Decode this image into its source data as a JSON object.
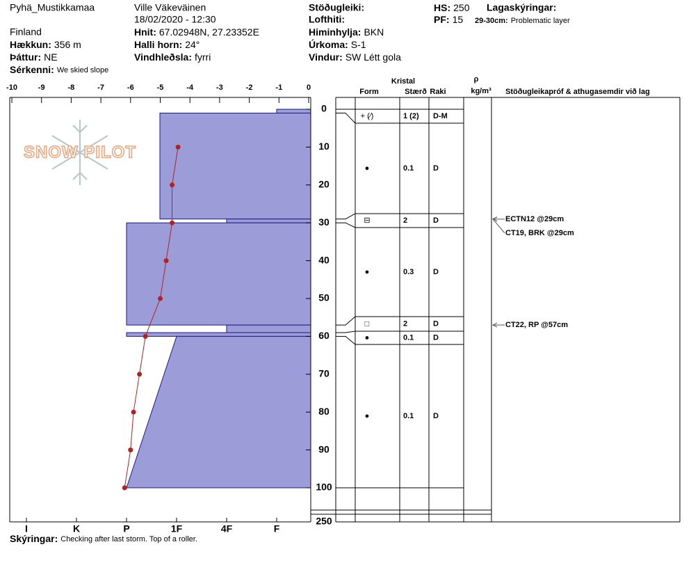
{
  "header": {
    "site": "Pyhä_Mustikkamaa",
    "country": "Finland",
    "elevation": {
      "label": "Hækkun:",
      "value": "356 m"
    },
    "aspect": {
      "label": "Þáttur:",
      "value": "NE"
    },
    "features": {
      "label": "Sérkenni:",
      "value": "We skied slope"
    },
    "observer": "Ville Väkeväinen",
    "datetime": "18/02/2020 - 12:30",
    "coords": {
      "label": "Hnit:",
      "value": "67.02948N, 27.23352E"
    },
    "slope": {
      "label": "Halli horn:",
      "value": "24°"
    },
    "wind_loading": {
      "label": "Vindhleðsla:",
      "value": "fyrri"
    },
    "stability_label": "Stöðugleiki:",
    "air_temp_label": "Lofthiti:",
    "sky": {
      "label": "Himinhylja:",
      "value": "BKN"
    },
    "precip": {
      "label": "Úrkoma:",
      "value": "S-1"
    },
    "wind": {
      "label": "Vindur:",
      "value": "SW Létt gola"
    },
    "hs": {
      "label": "HS:",
      "value": "250"
    },
    "pf": {
      "label": "PF:",
      "value": "15"
    },
    "layer_notes_label": "Lagaskýringar:",
    "layer_note": {
      "label": "29-30cm:",
      "value": "Problematic layer"
    }
  },
  "logo": "SNOW PILOT",
  "table_header": {
    "crystal": "Kristal",
    "form": "Form",
    "size": "Stærð",
    "moisture": "Raki",
    "density": "ρ",
    "density_unit": "kg/m³",
    "tests": "Stöðugleikapróf & athugasemdir við lag"
  },
  "profile": {
    "xlim": [
      -10,
      0
    ],
    "xticks": [
      -10,
      -9,
      -8,
      -7,
      -6,
      -5,
      -4,
      -3,
      -2,
      -1,
      0
    ],
    "ylim": [
      0,
      100
    ],
    "yticks": [
      0,
      10,
      20,
      30,
      40,
      50,
      60,
      70,
      80,
      90,
      100
    ],
    "total_depth": 250,
    "hardness_scale": [
      "I",
      "K",
      "P",
      "1F",
      "4F",
      "F"
    ],
    "temperatures": {
      "depths": [
        10,
        20,
        30,
        40,
        50,
        60,
        70,
        80,
        90,
        100
      ],
      "values": [
        -4.4,
        -4.6,
        -4.6,
        -4.8,
        -5.0,
        -5.5,
        -5.7,
        -5.9,
        -6.0,
        -6.2
      ]
    },
    "layers": [
      {
        "top": 0,
        "bottom": 1,
        "hardness": "F",
        "form": "+ (⁄)",
        "size": "1 (2)",
        "moisture": "D-M"
      },
      {
        "top": 1,
        "bottom": 29,
        "hardness": "1F+",
        "form": "●",
        "size": "0.1",
        "moisture": "D"
      },
      {
        "top": 29,
        "bottom": 30,
        "hardness": "4F",
        "form": "⊟",
        "size": "2",
        "moisture": "D"
      },
      {
        "top": 30,
        "bottom": 57,
        "hardness": "P",
        "form": "●",
        "size": "0.3",
        "moisture": "D"
      },
      {
        "top": 57,
        "bottom": 59,
        "hardness": "4F",
        "form": "□",
        "size": "2",
        "moisture": "D"
      },
      {
        "top": 59,
        "bottom": 60,
        "hardness": "P",
        "form": "●",
        "size": "0.1",
        "moisture": "D"
      },
      {
        "top": 60,
        "bottom": 100,
        "hardness": "1F",
        "hardness_bottom": "P",
        "form": "●",
        "size": "0.1",
        "moisture": "D"
      }
    ],
    "tests": [
      {
        "text": "ECTN12 @29cm",
        "depth": 29
      },
      {
        "text": "CT19, BRK @29cm",
        "depth": 29
      },
      {
        "text": "CT22, RP @57cm",
        "depth": 57
      }
    ]
  },
  "footer": {
    "label": "Skýringar:",
    "value": "Checking after last storm. Top of a roller."
  }
}
